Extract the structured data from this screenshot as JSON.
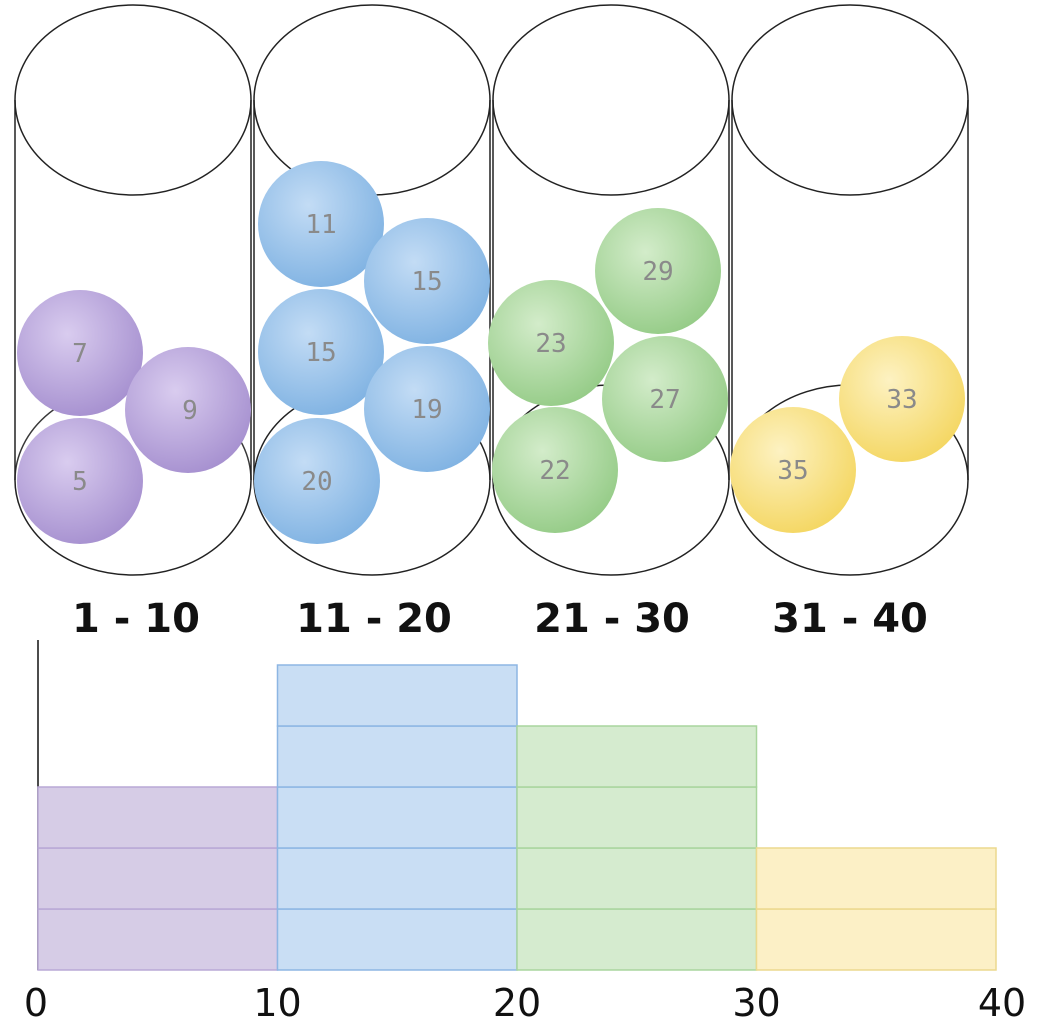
{
  "bins": [
    {
      "label": "1 - 10",
      "color": "#a58fcf",
      "balls": [
        "7",
        "9",
        "5"
      ]
    },
    {
      "label": "11 - 20",
      "color": "#7fb2e2",
      "balls": [
        "11",
        "15",
        "15",
        "19",
        "20"
      ]
    },
    {
      "label": "21 - 30",
      "color": "#9cd08f",
      "balls": [
        "29",
        "23",
        "27",
        "22"
      ]
    },
    {
      "label": "31 - 40",
      "color": "#f6dc6a",
      "balls": [
        "33",
        "35"
      ]
    }
  ],
  "chart_data": {
    "type": "bar",
    "categories": [
      "0-10",
      "10-20",
      "20-30",
      "30-40"
    ],
    "values": [
      3,
      5,
      4,
      2
    ],
    "x_ticks": [
      "0",
      "10",
      "20",
      "30",
      "40"
    ],
    "xlim": [
      0,
      40
    ],
    "ylim": [
      0,
      5
    ],
    "fill_colors": [
      "#d6cce6",
      "#c9def4",
      "#d5ebcf",
      "#fcf0c6"
    ],
    "edge_colors": [
      "#b8a8d6",
      "#8db6e3",
      "#a8d59d",
      "#ecd98e"
    ]
  }
}
